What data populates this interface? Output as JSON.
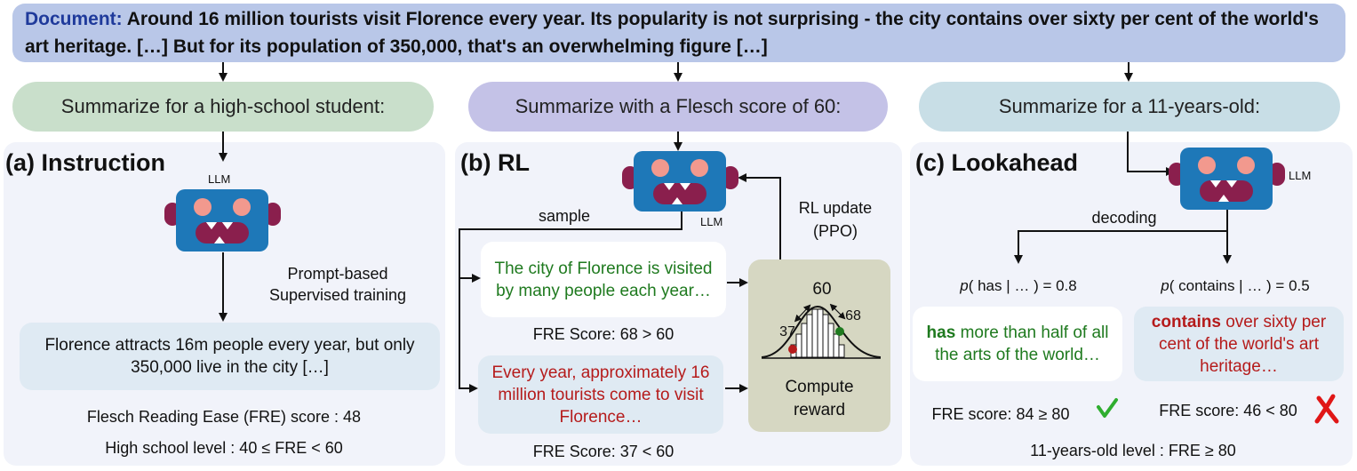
{
  "document": {
    "label": "Document:",
    "text": "Around 16 million tourists visit Florence every year. Its popularity is not surprising - the city contains over sixty per cent of the world's art heritage. […] But for its population of 350,000, that's an overwhelming figure […]"
  },
  "prompts": {
    "instruction": "Summarize for a high-school student:",
    "rl": "Summarize with a Flesch score of 60:",
    "lookahead": "Summarize for a 11-years-old:"
  },
  "panel_a": {
    "title": "(a) Instruction",
    "llm": "LLM",
    "arrow_label_1": "Prompt-based",
    "arrow_label_2": "Supervised training",
    "output": "Florence attracts 16m people every year, but only 350,000 live in the city […]",
    "score": "Flesch Reading Ease (FRE) score : 48",
    "level": "High school level : 40 ≤ FRE < 60"
  },
  "panel_b": {
    "title": "(b) RL",
    "llm": "LLM",
    "sample": "sample",
    "update_1": "RL update",
    "update_2": "(PPO)",
    "sample_good": "The city of Florence is visited by many people each year…",
    "score_good": "FRE Score: 68 > 60",
    "sample_bad": "Every year, approximately 16 million tourists come to visit Florence…",
    "score_bad": "FRE Score: 37 < 60",
    "reward_target": "60",
    "reward_low": "37",
    "reward_high": "68",
    "reward_1": "Compute",
    "reward_2": "reward"
  },
  "panel_c": {
    "title": "(c) Lookahead",
    "llm": "LLM",
    "decoding": "decoding",
    "prob_left_var": "p",
    "prob_left": "( has | … ) = 0.8",
    "prob_right_var": "p",
    "prob_right": "( contains | … ) = 0.5",
    "left_bold": "has",
    "left_rest": " more than half of all the arts of the world…",
    "right_bold": "contains",
    "right_rest": " over sixty per cent of the world's art heritage…",
    "score_left": "FRE score: 84 ≥ 80",
    "score_right": "FRE score: 46 < 80",
    "level": "11-years-old level : FRE ≥ 80"
  },
  "colors": {
    "robot_body": "#1e78b8",
    "robot_ear": "#8a1f4d",
    "robot_eye": "#f2998e",
    "robot_mouth": "#8a1f4d",
    "green_text": "#1f7a1f",
    "red_text": "#b51b1b",
    "check": "#2fae2f",
    "cross": "#e01616"
  }
}
